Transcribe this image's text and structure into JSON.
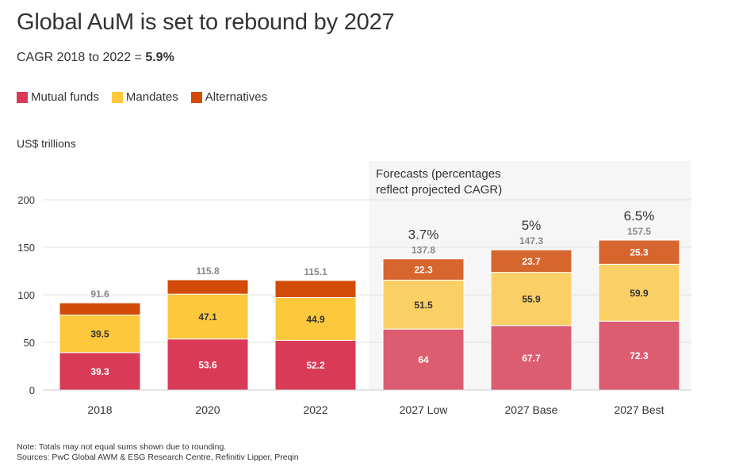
{
  "title": "Global AuM is set to rebound by 2027",
  "subtitle": {
    "prefix": "CAGR 2018 to 2022 = ",
    "value": "5.9%"
  },
  "ylabel": "US$ trillions",
  "notes": {
    "note": "Note: Totals may not equal sums shown due to rounding.",
    "sources": "Sources: PwC Global AWM & ESG Research Centre, Refinitiv Lipper, Preqin"
  },
  "forecast_label": [
    "Forecasts (percentages",
    "reflect projected CAGR)"
  ],
  "colors": {
    "mutual_funds": "#d93a56",
    "mandates": "#fdc83c",
    "alternatives": "#d24b07",
    "mutual_funds_forecast": "#dc5c70",
    "mandates_forecast": "#f9cf66",
    "alternatives_forecast": "#d6652e",
    "forecast_bg": "#f6f6f6",
    "grid": "#e0e0e0"
  },
  "chart_data": {
    "type": "bar",
    "stacked": true,
    "categories": [
      "2018",
      "2020",
      "2022",
      "2027 Low",
      "2027 Base",
      "2027 Best"
    ],
    "series": [
      {
        "name": "Mutual funds",
        "values": [
          39.3,
          53.6,
          52.2,
          64,
          67.7,
          72.3
        ],
        "labels": [
          "39.3",
          "53.6",
          "52.2",
          "64",
          "67.7",
          "72.3"
        ]
      },
      {
        "name": "Mandates",
        "values": [
          39.5,
          47.1,
          44.9,
          51.5,
          55.9,
          59.9
        ],
        "labels": [
          "39.5",
          "47.1",
          "44.9",
          "51.5",
          "55.9",
          "59.9"
        ]
      },
      {
        "name": "Alternatives",
        "values": [
          12.8,
          15.1,
          18.0,
          22.3,
          23.7,
          25.3
        ],
        "labels": [
          "",
          "",
          "",
          "22.3",
          "23.7",
          "25.3"
        ]
      }
    ],
    "totals": [
      "91.6",
      "115.8",
      "115.1",
      "137.8",
      "147.3",
      "157.5"
    ],
    "total_values": [
      91.6,
      115.8,
      115.1,
      137.8,
      147.3,
      157.5
    ],
    "cagr": [
      "",
      "",
      "",
      "3.7%",
      "5%",
      "6.5%"
    ],
    "forecast_from_index": 3,
    "yticks": [
      0,
      50,
      100,
      150,
      200
    ],
    "ylim": [
      0,
      200
    ],
    "grid": true,
    "legend": "top-left"
  }
}
